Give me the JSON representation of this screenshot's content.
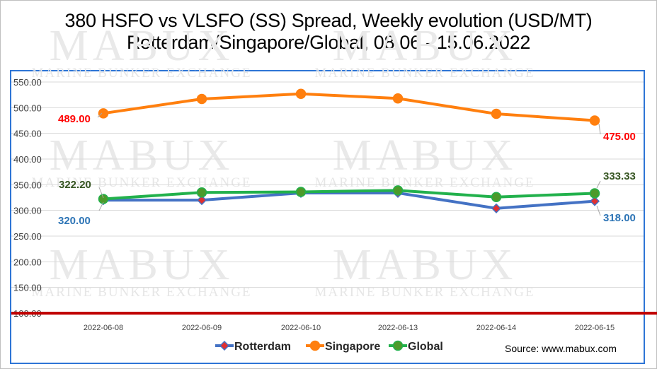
{
  "chart_data": {
    "type": "line",
    "title": "380 HSFO vs VLSFO (SS) Spread, Weekly evolution (USD/MT)",
    "subtitle": "Rotterdam/Singapore/Global, 08.06 - 15.06.2022",
    "categories": [
      "2022-06-08",
      "2022-06-09",
      "2022-06-10",
      "2022-06-13",
      "2022-06-14",
      "2022-06-15"
    ],
    "ylim": [
      100,
      550
    ],
    "yticks": [
      "100.00",
      "150.00",
      "200.00",
      "250.00",
      "300.00",
      "350.00",
      "400.00",
      "450.00",
      "500.00",
      "550.00"
    ],
    "grid": true,
    "legend_position": "bottom",
    "reference_line": {
      "value": 100,
      "color": "#c00000"
    },
    "series": [
      {
        "name": "Rotterdam",
        "values": [
          320,
          320,
          334,
          334,
          304,
          318
        ],
        "color": "#4472c4",
        "marker": "diamond",
        "marker_color": "#e03030",
        "labels": [
          {
            "index": 0,
            "text": "320.00",
            "color": "#2e75b6"
          },
          {
            "index": 5,
            "text": "318.00",
            "color": "#2e75b6"
          }
        ]
      },
      {
        "name": "Singapore",
        "values": [
          489,
          517,
          527,
          518,
          488,
          475
        ],
        "color": "#ff7f0e",
        "marker": "circle",
        "marker_color": "#ff7f0e",
        "labels": [
          {
            "index": 0,
            "text": "489.00",
            "color": "#ff0000"
          },
          {
            "index": 5,
            "text": "475.00",
            "color": "#ff0000"
          }
        ]
      },
      {
        "name": "Global",
        "values": [
          322.2,
          335,
          336,
          339,
          326,
          333.33
        ],
        "color": "#22b14c",
        "marker": "circle",
        "marker_color": "#4c9a2a",
        "labels": [
          {
            "index": 0,
            "text": "322.20",
            "color": "#375623"
          },
          {
            "index": 5,
            "text": "333.33",
            "color": "#375623"
          }
        ]
      }
    ]
  },
  "watermark": {
    "brand": "MABUX",
    "tagline": "MARINE BUNKER EXCHANGE"
  },
  "source": "Source: www.mabux.com"
}
